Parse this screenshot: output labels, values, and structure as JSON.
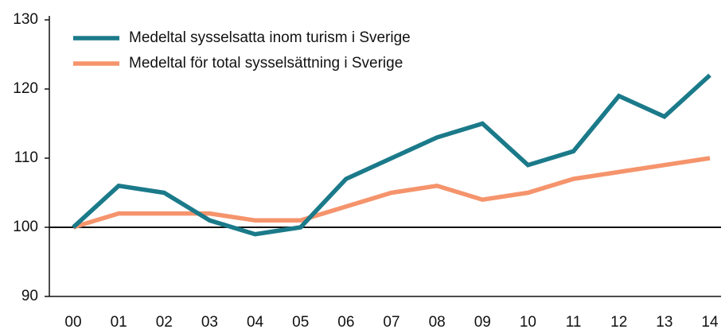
{
  "chart_data": {
    "type": "line",
    "categories": [
      "00",
      "01",
      "02",
      "03",
      "04",
      "05",
      "06",
      "07",
      "08",
      "09",
      "10",
      "11",
      "12",
      "13",
      "14"
    ],
    "series": [
      {
        "name": "Medeltal sysselsatta inom turism i Sverige",
        "color": "#1b7a8a",
        "values": [
          100,
          106,
          105,
          101,
          99,
          100,
          107,
          110,
          113,
          115,
          109,
          111,
          119,
          116,
          122
        ]
      },
      {
        "name": "Medeltal för total sysselsättning i Sverige",
        "color": "#f5946c",
        "values": [
          100,
          102,
          102,
          102,
          101,
          101,
          103,
          105,
          106,
          104,
          105,
          107,
          108,
          109,
          110
        ]
      }
    ],
    "ylim": [
      90,
      130
    ],
    "yticks": [
      90,
      100,
      110,
      120,
      130
    ],
    "reference_line": 100,
    "grid": false,
    "legend": "upper left"
  }
}
